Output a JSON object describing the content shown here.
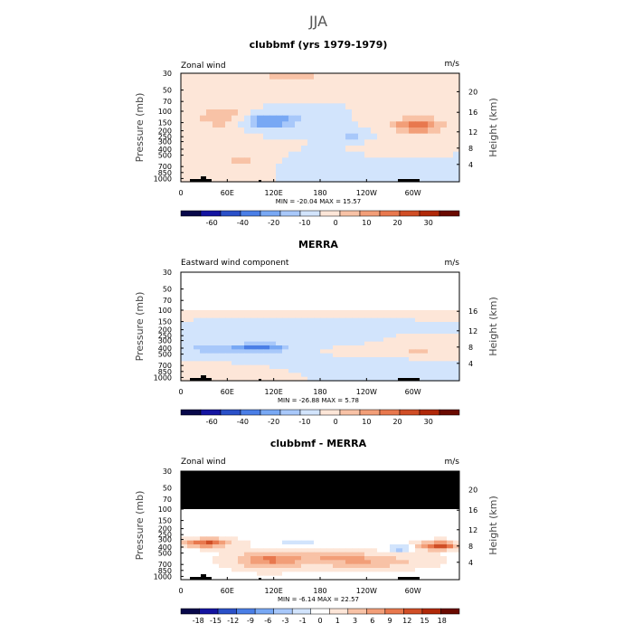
{
  "header": {
    "season": "JJA"
  },
  "colors": {
    "wind_scale": [
      "#08084a",
      "#1414a0",
      "#2a50c8",
      "#4a7ee6",
      "#78a8f4",
      "#a8c8fa",
      "#d2e4fc",
      "#fde6d8",
      "#f8c2a6",
      "#f29e78",
      "#e8784e",
      "#d04e26",
      "#b02808",
      "#6a0a00"
    ],
    "diff_scale": [
      "#08084a",
      "#1414a0",
      "#2a50c8",
      "#4a7ee6",
      "#78a8f4",
      "#a8c8fa",
      "#d2e4fc",
      "#ffffff",
      "#fde6d8",
      "#f8c2a6",
      "#f29e78",
      "#e8784e",
      "#d04e26",
      "#b02808",
      "#6a0a00"
    ],
    "missing": "#000000",
    "topography": "#000000"
  },
  "chart_data": [
    {
      "type": "heatmap",
      "title": "clubbmf (yrs 1979-1979)",
      "field_label": "Zonal wind",
      "units": "m/s",
      "ylabel": "Pressure (mb)",
      "y2label": "Height (km)",
      "x_ticks": [
        "0",
        "60E",
        "120E",
        "180",
        "120W",
        "60W"
      ],
      "y_ticks": [
        "30",
        "50",
        "70",
        "100",
        "150",
        "200",
        "250",
        "300",
        "400",
        "500",
        "700",
        "850",
        "1000"
      ],
      "y2_ticks": [
        "20",
        "16",
        "12",
        "8",
        "4"
      ],
      "stats": "MIN = -20.04   MAX =  15.57",
      "colorbar_labels": [
        "-60",
        "-40",
        "-20",
        "-10",
        "0",
        "10",
        "20",
        "30"
      ],
      "min": -20.04,
      "max": 15.57
    },
    {
      "type": "heatmap",
      "title": "MERRA",
      "field_label": "Eastward wind component",
      "units": "m/s",
      "ylabel": "Pressure (mb)",
      "y2label": "Height (km)",
      "x_ticks": [
        "0",
        "60E",
        "120E",
        "180",
        "120W",
        "60W"
      ],
      "y_ticks": [
        "30",
        "50",
        "70",
        "100",
        "150",
        "200",
        "250",
        "300",
        "400",
        "500",
        "700",
        "850",
        "1000"
      ],
      "y2_ticks": [
        "16",
        "12",
        "8",
        "4"
      ],
      "stats": "MIN = -26.88   MAX =   5.78",
      "colorbar_labels": [
        "-60",
        "-40",
        "-20",
        "-10",
        "0",
        "10",
        "20",
        "30"
      ],
      "min": -26.88,
      "max": 5.78
    },
    {
      "type": "heatmap",
      "title": "clubbmf - MERRA",
      "field_label": "Zonal wind",
      "units": "m/s",
      "ylabel": "Pressure (mb)",
      "y2label": "Height (km)",
      "x_ticks": [
        "0",
        "60E",
        "120E",
        "180",
        "120W",
        "60W"
      ],
      "y_ticks": [
        "30",
        "50",
        "70",
        "100",
        "150",
        "200",
        "250",
        "300",
        "400",
        "500",
        "700",
        "850",
        "1000"
      ],
      "y2_ticks": [
        "20",
        "16",
        "12",
        "8",
        "4"
      ],
      "stats": "MIN =  -6.14   MAX =  22.57",
      "colorbar_labels": [
        "-18",
        "-15",
        "-12",
        "-9",
        "-6",
        "-3",
        "-1",
        "0",
        "1",
        "3",
        "6",
        "9",
        "12",
        "15",
        "18"
      ],
      "min": -6.14,
      "max": 22.57
    }
  ]
}
